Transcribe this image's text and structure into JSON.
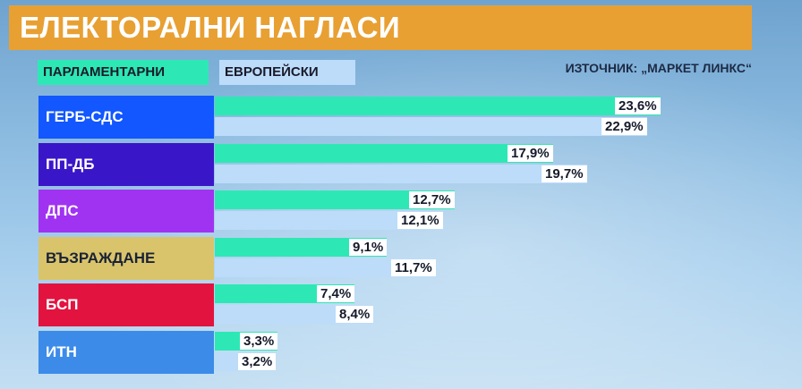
{
  "title": "ЕЛЕКТОРАЛНИ НАГЛАСИ",
  "legend": {
    "parliamentary": "ПАРЛАМЕНТАРНИ",
    "european": "ЕВРОПЕЙСКИ"
  },
  "source": "ИЗТОЧНИК: „МАРКЕТ ЛИНКС“",
  "chart_data": {
    "type": "bar",
    "orientation": "horizontal",
    "categories": [
      "ГЕРБ-СДС",
      "ПП-ДБ",
      "ДПС",
      "ВЪЗРАЖДАНЕ",
      "БСП",
      "ИТН"
    ],
    "series": [
      {
        "name": "ПАРЛАМЕНТАРНИ",
        "values": [
          23.6,
          17.9,
          12.7,
          9.1,
          7.4,
          3.3
        ],
        "labels": [
          "23,6%",
          "17,9%",
          "12,7%",
          "9,1%",
          "7,4%",
          "3,3%"
        ],
        "color": "#2de8b5"
      },
      {
        "name": "ЕВРОПЕЙСКИ",
        "values": [
          22.9,
          19.7,
          12.1,
          11.7,
          8.4,
          3.2
        ],
        "labels": [
          "22,9%",
          "19,7%",
          "12,1%",
          "11,7%",
          "8,4%",
          "3,2%"
        ],
        "color": "#bcdcfa"
      }
    ],
    "party_colors": [
      "#1257ff",
      "#3a16c9",
      "#a033f2",
      "#d9c46b",
      "#e3133f",
      "#3c8be9"
    ],
    "party_text_colors": [
      "#ffffff",
      "#ffffff",
      "#ffffff",
      "#1a2236",
      "#ffffff",
      "#ffffff"
    ],
    "xlim": [
      0,
      30
    ]
  }
}
